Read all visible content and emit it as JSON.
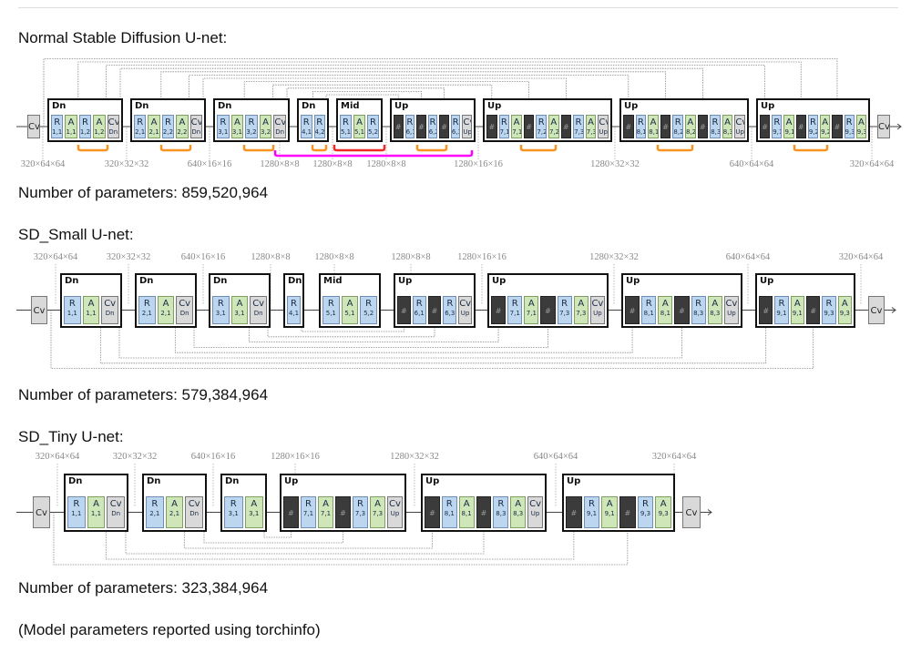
{
  "sections": [
    {
      "title": "Normal Stable Diffusion U-net:",
      "params": "Number of parameters: 859,520,964",
      "io_label": "Cv",
      "dims": [
        "320×64×64",
        "320×32×32",
        "640×16×16",
        "1280×8×8",
        "1280×8×8",
        "1280×8×8",
        "1280×16×16",
        "1280×32×32",
        "640×64×64",
        "320×64×64"
      ],
      "blocks": [
        {
          "label": "Dn",
          "cells": [
            [
              "R",
              "1,1"
            ],
            [
              "A",
              "1,1"
            ],
            [
              "R",
              "1,2"
            ],
            [
              "A",
              "1,2"
            ],
            [
              "Cv",
              "Dn"
            ]
          ]
        },
        {
          "label": "Dn",
          "cells": [
            [
              "R",
              "2,1"
            ],
            [
              "A",
              "2,1"
            ],
            [
              "R",
              "2,2"
            ],
            [
              "A",
              "2,2"
            ],
            [
              "Cv",
              "Dn"
            ]
          ]
        },
        {
          "label": "Dn",
          "cells": [
            [
              "R",
              "3,1"
            ],
            [
              "A",
              "3,1"
            ],
            [
              "R",
              "3,2"
            ],
            [
              "A",
              "3,2"
            ],
            [
              "Cv",
              "Dn"
            ]
          ]
        },
        {
          "label": "Dn",
          "cells": [
            [
              "R",
              "4,1"
            ],
            [
              "R",
              "4,2"
            ]
          ]
        },
        {
          "label": "Mid",
          "cells": [
            [
              "R",
              "5,1"
            ],
            [
              "A",
              "5,1"
            ],
            [
              "R",
              "5,2"
            ]
          ]
        },
        {
          "label": "Up",
          "cells": [
            [
              "H",
              "#"
            ],
            [
              "R",
              "6,1"
            ],
            [
              "H",
              "#"
            ],
            [
              "R",
              "6,2"
            ],
            [
              "H",
              "#"
            ],
            [
              "R",
              "6,3"
            ],
            [
              "Cv",
              "Up"
            ]
          ]
        },
        {
          "label": "Up",
          "cells": [
            [
              "H",
              "#"
            ],
            [
              "R",
              "7,1"
            ],
            [
              "A",
              "7,1"
            ],
            [
              "H",
              "#"
            ],
            [
              "R",
              "7,2"
            ],
            [
              "A",
              "7,2"
            ],
            [
              "H",
              "#"
            ],
            [
              "R",
              "7,3"
            ],
            [
              "A",
              "7,3"
            ],
            [
              "Cv",
              "Up"
            ]
          ]
        },
        {
          "label": "Up",
          "cells": [
            [
              "H",
              "#"
            ],
            [
              "R",
              "8,1"
            ],
            [
              "A",
              "8,1"
            ],
            [
              "H",
              "#"
            ],
            [
              "R",
              "8,2"
            ],
            [
              "A",
              "8,2"
            ],
            [
              "H",
              "#"
            ],
            [
              "R",
              "8,3"
            ],
            [
              "A",
              "8,3"
            ],
            [
              "Cv",
              "Up"
            ]
          ]
        },
        {
          "label": "Up",
          "cells": [
            [
              "H",
              "#"
            ],
            [
              "R",
              "9,1"
            ],
            [
              "A",
              "9,1"
            ],
            [
              "H",
              "#"
            ],
            [
              "R",
              "9,2"
            ],
            [
              "A",
              "9,2"
            ],
            [
              "H",
              "#"
            ],
            [
              "R",
              "9,3"
            ],
            [
              "A",
              "9,3"
            ]
          ]
        }
      ]
    },
    {
      "title": "SD_Small U-net:",
      "params": "Number of parameters: 579,384,964",
      "io_label": "Cv",
      "dims": [
        "320×64×64",
        "320×32×32",
        "640×16×16",
        "1280×8×8",
        "1280×8×8",
        "1280×8×8",
        "1280×16×16",
        "1280×32×32",
        "640×64×64",
        "320×64×64"
      ],
      "blocks": [
        {
          "label": "Dn",
          "cells": [
            [
              "R",
              "1,1"
            ],
            [
              "A",
              "1,1"
            ],
            [
              "Cv",
              "Dn"
            ]
          ]
        },
        {
          "label": "Dn",
          "cells": [
            [
              "R",
              "2,1"
            ],
            [
              "A",
              "2,1"
            ],
            [
              "Cv",
              "Dn"
            ]
          ]
        },
        {
          "label": "Dn",
          "cells": [
            [
              "R",
              "3,1"
            ],
            [
              "A",
              "3,1"
            ],
            [
              "Cv",
              "Dn"
            ]
          ]
        },
        {
          "label": "Dn",
          "cells": [
            [
              "R",
              "4,1"
            ]
          ]
        },
        {
          "label": "Mid",
          "cells": [
            [
              "R",
              "5,1"
            ],
            [
              "A",
              "5,1"
            ],
            [
              "R",
              "5,2"
            ]
          ]
        },
        {
          "label": "Up",
          "cells": [
            [
              "H",
              "#"
            ],
            [
              "R",
              "6,1"
            ],
            [
              "H",
              "#"
            ],
            [
              "R",
              "6,3"
            ],
            [
              "Cv",
              "Up"
            ]
          ]
        },
        {
          "label": "Up",
          "cells": [
            [
              "H",
              "#"
            ],
            [
              "R",
              "7,1"
            ],
            [
              "A",
              "7,1"
            ],
            [
              "H",
              "#"
            ],
            [
              "R",
              "7,3"
            ],
            [
              "A",
              "7,3"
            ],
            [
              "Cv",
              "Up"
            ]
          ]
        },
        {
          "label": "Up",
          "cells": [
            [
              "H",
              "#"
            ],
            [
              "R",
              "8,1"
            ],
            [
              "A",
              "8,1"
            ],
            [
              "H",
              "#"
            ],
            [
              "R",
              "8,3"
            ],
            [
              "A",
              "8,3"
            ],
            [
              "Cv",
              "Up"
            ]
          ]
        },
        {
          "label": "Up",
          "cells": [
            [
              "H",
              "#"
            ],
            [
              "R",
              "9,1"
            ],
            [
              "A",
              "9,1"
            ],
            [
              "H",
              "#"
            ],
            [
              "R",
              "9,3"
            ],
            [
              "A",
              "9,3"
            ]
          ]
        }
      ]
    },
    {
      "title": "SD_Tiny U-net:",
      "params": "Number of parameters: 323,384,964",
      "io_label": "Cv",
      "dims": [
        "320×64×64",
        "320×32×32",
        "640×16×16",
        "1280×16×16",
        "1280×32×32",
        "640×64×64",
        "320×64×64"
      ],
      "blocks": [
        {
          "label": "Dn",
          "cells": [
            [
              "R",
              "1,1"
            ],
            [
              "A",
              "1,1"
            ],
            [
              "Cv",
              "Dn"
            ]
          ]
        },
        {
          "label": "Dn",
          "cells": [
            [
              "R",
              "2,1"
            ],
            [
              "A",
              "2,1"
            ],
            [
              "Cv",
              "Dn"
            ]
          ]
        },
        {
          "label": "Dn",
          "cells": [
            [
              "R",
              "3,1"
            ],
            [
              "A",
              "3,1"
            ]
          ]
        },
        {
          "label": "Up",
          "cells": [
            [
              "H",
              "#"
            ],
            [
              "R",
              "7,1"
            ],
            [
              "A",
              "7,1"
            ],
            [
              "H",
              "#"
            ],
            [
              "R",
              "7,3"
            ],
            [
              "A",
              "7,3"
            ],
            [
              "Cv",
              "Up"
            ]
          ]
        },
        {
          "label": "Up",
          "cells": [
            [
              "H",
              "#"
            ],
            [
              "R",
              "8,1"
            ],
            [
              "A",
              "8,1"
            ],
            [
              "H",
              "#"
            ],
            [
              "R",
              "8,3"
            ],
            [
              "A",
              "8,3"
            ],
            [
              "Cv",
              "Up"
            ]
          ]
        },
        {
          "label": "Up",
          "cells": [
            [
              "H",
              "#"
            ],
            [
              "R",
              "9,1"
            ],
            [
              "A",
              "9,1"
            ],
            [
              "H",
              "#"
            ],
            [
              "R",
              "9,3"
            ],
            [
              "A",
              "9,3"
            ]
          ]
        }
      ]
    }
  ],
  "footnote": "(Model parameters reported using torchinfo)",
  "colors": {
    "removed_pair": "#f7931e",
    "removed_mid": "#ee2a24",
    "removed_span": "#ff00ff",
    "resnet": "#bdd6ef",
    "attention": "#cfe6b8",
    "conv": "#d9d9d9",
    "concat": "#3b3b3b"
  }
}
